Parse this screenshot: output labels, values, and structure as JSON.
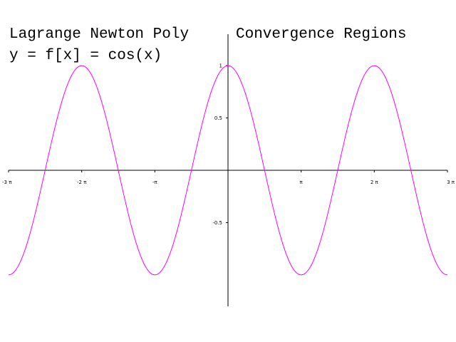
{
  "title_left": "Lagrange Newton Poly",
  "title_right": "Convergence Regions",
  "subtitle": "y = f[x] = cos(x)",
  "chart_data": {
    "type": "line",
    "function": "cos(x)",
    "xlim": [
      -9.42478,
      9.42478
    ],
    "ylim": [
      -1.3,
      1.3
    ],
    "grid": false,
    "x_ticks": [
      {
        "value": -9.42478,
        "label": "-3 π"
      },
      {
        "value": -6.28319,
        "label": "-2 π"
      },
      {
        "value": -3.14159,
        "label": "-π"
      },
      {
        "value": 3.14159,
        "label": "π"
      },
      {
        "value": 6.28319,
        "label": "2 π"
      },
      {
        "value": 9.42478,
        "label": "3 π"
      }
    ],
    "y_ticks": [
      {
        "value": 1,
        "label": "1"
      },
      {
        "value": 0.5,
        "label": "0.5"
      },
      {
        "value": -0.5,
        "label": "-0.5"
      }
    ],
    "series": [
      {
        "color": "#ff00ff",
        "sample_count": 181
      }
    ]
  }
}
